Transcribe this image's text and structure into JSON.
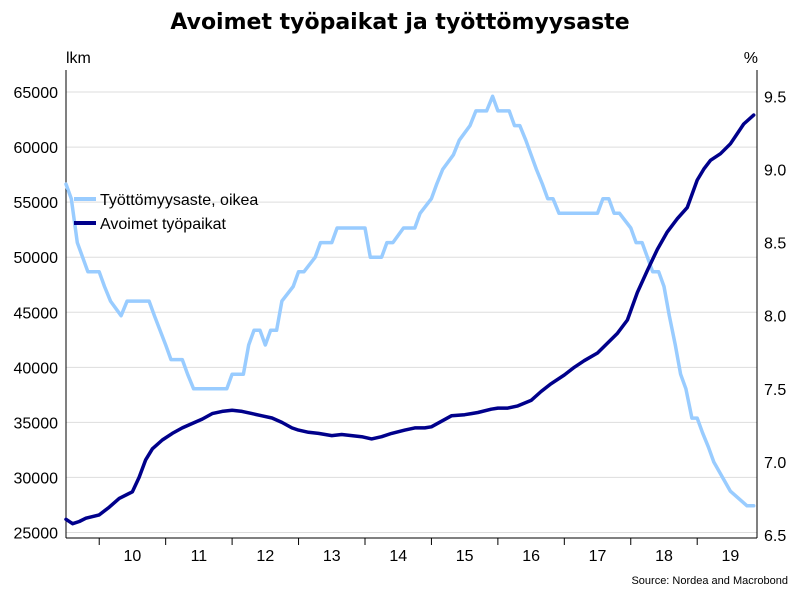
{
  "chart_data": {
    "type": "line",
    "title": "Avoimet työpaikat ja työttömyysaste",
    "left_axis_unit": "lkm",
    "right_axis_unit": "%",
    "source": "Source: Nordea and Macrobond",
    "left_yticks": [
      25000,
      30000,
      35000,
      40000,
      45000,
      50000,
      55000,
      60000,
      65000
    ],
    "right_yticks": [
      "6.5",
      "7.0",
      "7.5",
      "8.0",
      "8.5",
      "9.0",
      "9.5"
    ],
    "xticks": [
      "10",
      "11",
      "12",
      "13",
      "14",
      "15",
      "16",
      "17",
      "18",
      "19"
    ],
    "xlim": [
      2009.5,
      2019.9
    ],
    "ylim_left": [
      24500,
      67000
    ],
    "ylim_right": [
      6.48,
      9.68
    ],
    "legend_position": "upper-left",
    "series": [
      {
        "name": "Työttömyysaste, oikea",
        "axis": "right",
        "color": "#99CCFF",
        "x": [
          2009.5,
          2009.58,
          2009.67,
          2009.83,
          2010.0,
          2010.08,
          2010.17,
          2010.33,
          2010.42,
          2010.5,
          2010.58,
          2010.75,
          2010.83,
          2011.0,
          2011.08,
          2011.25,
          2011.33,
          2011.42,
          2011.5,
          2011.58,
          2011.75,
          2011.83,
          2011.92,
          2012.0,
          2012.08,
          2012.17,
          2012.25,
          2012.33,
          2012.42,
          2012.5,
          2012.58,
          2012.67,
          2012.75,
          2012.92,
          2013.0,
          2013.08,
          2013.25,
          2013.33,
          2013.5,
          2013.58,
          2013.75,
          2013.83,
          2014.0,
          2014.08,
          2014.17,
          2014.25,
          2014.33,
          2014.42,
          2014.58,
          2014.75,
          2014.83,
          2015.0,
          2015.08,
          2015.17,
          2015.33,
          2015.42,
          2015.58,
          2015.67,
          2015.83,
          2015.92,
          2016.0,
          2016.08,
          2016.17,
          2016.25,
          2016.33,
          2016.42,
          2016.5,
          2016.58,
          2016.67,
          2016.75,
          2016.83,
          2016.92,
          2017.0,
          2017.08,
          2017.17,
          2017.25,
          2017.33,
          2017.42,
          2017.5,
          2017.58,
          2017.67,
          2017.75,
          2017.83,
          2018.0,
          2018.08,
          2018.17,
          2018.25,
          2018.33,
          2018.42,
          2018.5,
          2018.58,
          2018.67,
          2018.75,
          2018.83,
          2018.92,
          2019.0,
          2019.08,
          2019.17,
          2019.25,
          2019.5,
          2019.75,
          2019.85
        ],
        "values": [
          8.9,
          8.8,
          8.5,
          8.3,
          8.3,
          8.2,
          8.1,
          8.0,
          8.1,
          8.1,
          8.1,
          8.1,
          8.0,
          7.8,
          7.7,
          7.7,
          7.6,
          7.5,
          7.5,
          7.5,
          7.5,
          7.5,
          7.5,
          7.6,
          7.6,
          7.6,
          7.8,
          7.9,
          7.9,
          7.8,
          7.9,
          7.9,
          8.1,
          8.2,
          8.3,
          8.3,
          8.4,
          8.5,
          8.5,
          8.6,
          8.6,
          8.6,
          8.6,
          8.4,
          8.4,
          8.4,
          8.5,
          8.5,
          8.6,
          8.6,
          8.7,
          8.8,
          8.9,
          9.0,
          9.1,
          9.2,
          9.3,
          9.4,
          9.4,
          9.5,
          9.4,
          9.4,
          9.4,
          9.3,
          9.3,
          9.2,
          9.1,
          9.0,
          8.9,
          8.8,
          8.8,
          8.7,
          8.7,
          8.7,
          8.7,
          8.7,
          8.7,
          8.7,
          8.7,
          8.8,
          8.8,
          8.7,
          8.7,
          8.6,
          8.5,
          8.5,
          8.4,
          8.3,
          8.3,
          8.2,
          8.0,
          7.8,
          7.6,
          7.5,
          7.3,
          7.3,
          7.2,
          7.1,
          7.0,
          6.8,
          6.7,
          6.7
        ]
      },
      {
        "name": "Avoimet työpaikat",
        "axis": "left",
        "color": "#00008B",
        "x": [
          2009.5,
          2009.6,
          2009.7,
          2009.8,
          2010.0,
          2010.15,
          2010.3,
          2010.5,
          2010.6,
          2010.7,
          2010.8,
          2010.95,
          2011.1,
          2011.25,
          2011.4,
          2011.55,
          2011.7,
          2011.85,
          2012.0,
          2012.15,
          2012.3,
          2012.45,
          2012.6,
          2012.75,
          2012.9,
          2013.0,
          2013.15,
          2013.3,
          2013.5,
          2013.65,
          2013.8,
          2013.95,
          2014.1,
          2014.25,
          2014.4,
          2014.6,
          2014.75,
          2014.9,
          2015.0,
          2015.15,
          2015.3,
          2015.5,
          2015.6,
          2015.7,
          2015.9,
          2016.0,
          2016.15,
          2016.3,
          2016.5,
          2016.65,
          2016.8,
          2017.0,
          2017.15,
          2017.3,
          2017.5,
          2017.65,
          2017.8,
          2017.95,
          2018.1,
          2018.25,
          2018.4,
          2018.55,
          2018.7,
          2018.85,
          2019.0,
          2019.1,
          2019.2,
          2019.35,
          2019.5,
          2019.6,
          2019.7,
          2019.85
        ],
        "values": [
          26200,
          25800,
          26000,
          26300,
          26600,
          27300,
          28100,
          28700,
          30000,
          31600,
          32600,
          33400,
          34000,
          34500,
          34900,
          35300,
          35800,
          36000,
          36100,
          36000,
          35800,
          35600,
          35400,
          35000,
          34500,
          34300,
          34100,
          34000,
          33800,
          33900,
          33800,
          33700,
          33500,
          33700,
          34000,
          34300,
          34500,
          34500,
          34600,
          35100,
          35600,
          35700,
          35800,
          35900,
          36200,
          36300,
          36300,
          36500,
          37000,
          37800,
          38500,
          39300,
          40000,
          40600,
          41300,
          42200,
          43100,
          44300,
          46800,
          48800,
          50700,
          52300,
          53500,
          54500,
          57000,
          58000,
          58800,
          59400,
          60300,
          61200,
          62100,
          62900
        ]
      }
    ]
  }
}
